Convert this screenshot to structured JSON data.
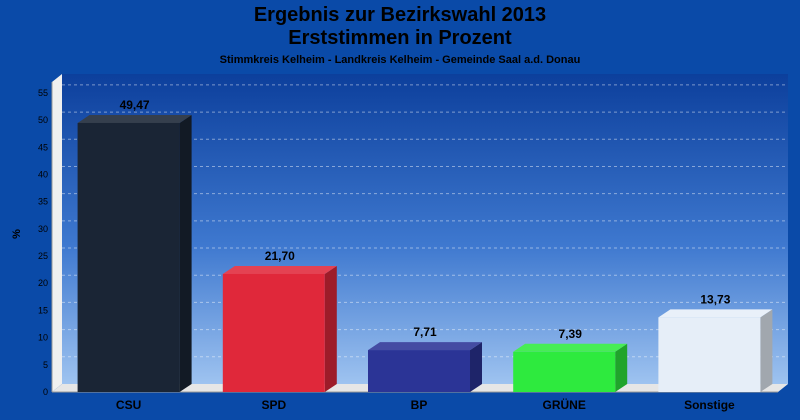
{
  "chart_data": {
    "type": "bar",
    "title": "Ergebnis zur Bezirkswahl 2013",
    "title2": "Erststimmen in Prozent",
    "subtitle": "Stimmkreis Kelheim - Landkreis Kelheim - Gemeinde Saal a.d. Donau",
    "ylabel": "%",
    "xlabel": "",
    "ylim": [
      0,
      57
    ],
    "yticks": [
      0,
      5,
      10,
      15,
      20,
      25,
      30,
      35,
      40,
      45,
      50,
      55
    ],
    "grid": true,
    "categories": [
      "CSU",
      "SPD",
      "BP",
      "GRÜNE",
      "Sonstige"
    ],
    "values": [
      49.47,
      21.7,
      7.71,
      7.39,
      13.73
    ],
    "value_labels": [
      "49,47",
      "21,70",
      "7,71",
      "7,39",
      "13,73"
    ],
    "colors": [
      "#1a2535",
      "#e0283a",
      "#2b3496",
      "#2eea3e",
      "#e6eef8"
    ]
  }
}
